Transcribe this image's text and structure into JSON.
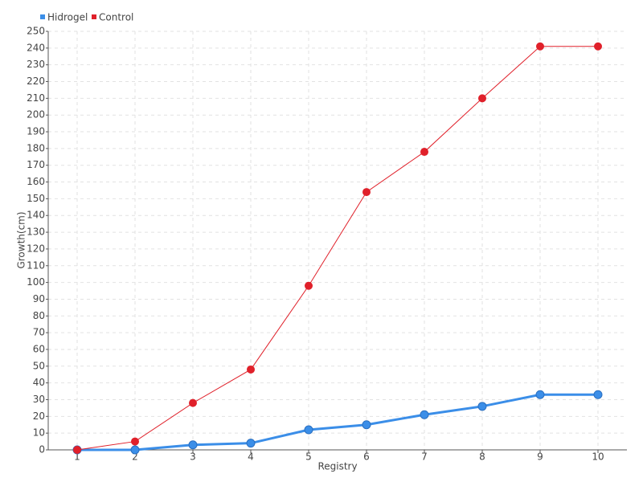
{
  "chart_data": {
    "type": "line",
    "x_label": "Registry",
    "y_label": "Growth(cm)",
    "categories": [
      "1",
      "2",
      "3",
      "4",
      "5",
      "6",
      "7",
      "8",
      "9",
      "10"
    ],
    "series": [
      {
        "name": "Hidrogel",
        "color": "#3b8ee8",
        "values": [
          0,
          0,
          3,
          4,
          12,
          15,
          21,
          26,
          33,
          33
        ]
      },
      {
        "name": "Control",
        "color": "#e0202a",
        "values": [
          0,
          5,
          28,
          48,
          98,
          154,
          178,
          210,
          241,
          241
        ]
      }
    ],
    "ylim": [
      0,
      250
    ],
    "yticks": [
      0,
      10,
      20,
      30,
      40,
      50,
      60,
      70,
      80,
      90,
      100,
      110,
      120,
      130,
      140,
      150,
      160,
      170,
      180,
      190,
      200,
      210,
      220,
      230,
      240,
      250
    ],
    "grid": true,
    "legend": "top-left"
  }
}
